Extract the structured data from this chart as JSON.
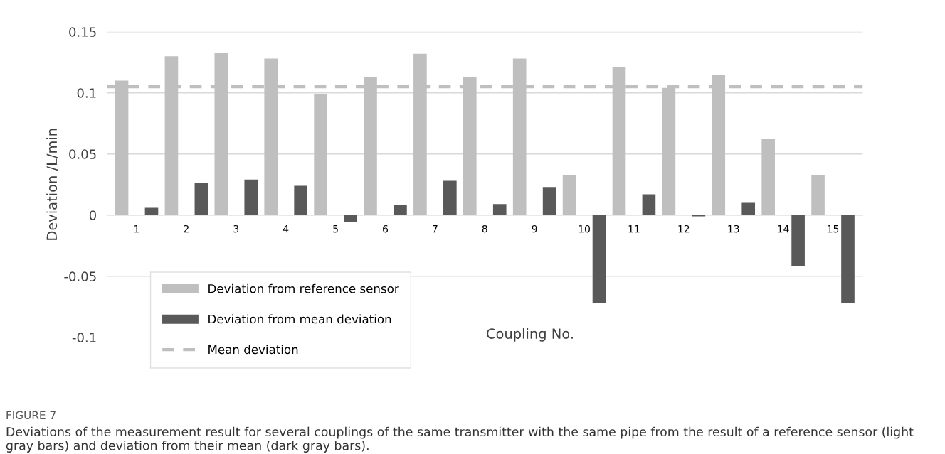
{
  "chart_data": {
    "type": "bar",
    "categories": [
      "1",
      "2",
      "3",
      "4",
      "5",
      "6",
      "7",
      "8",
      "9",
      "10",
      "11",
      "12",
      "13",
      "14",
      "15"
    ],
    "series": [
      {
        "name": "Deviation from reference sensor",
        "color": "#bfbfbf",
        "values": [
          0.11,
          0.13,
          0.133,
          0.128,
          0.099,
          0.113,
          0.132,
          0.113,
          0.128,
          0.033,
          0.121,
          0.104,
          0.115,
          0.062,
          0.033
        ]
      },
      {
        "name": "Deviation from mean deviation",
        "color": "#595959",
        "values": [
          0.006,
          0.026,
          0.029,
          0.024,
          -0.006,
          0.008,
          0.028,
          0.009,
          0.023,
          -0.072,
          0.017,
          -0.001,
          0.01,
          -0.042,
          -0.072
        ]
      }
    ],
    "ref_lines": [
      {
        "axis": "y",
        "value": 0.105,
        "label": "Mean deviation",
        "color": "#bfbfbf",
        "line_style": "dashed"
      }
    ],
    "xlabel": "Coupling No.",
    "ylabel": "Deviation /L/min",
    "ylim": [
      -0.1,
      0.15
    ],
    "yticks": [
      {
        "value": -0.1,
        "label": "-0.1"
      },
      {
        "value": -0.05,
        "label": "-0.05"
      },
      0,
      {
        "value": 0.05,
        "label": "0.05"
      },
      {
        "value": 0.1,
        "label": "0.1"
      },
      {
        "value": 0.15,
        "label": "0.15"
      }
    ],
    "grid": "y",
    "legend": "bottom left",
    "annotations": [
      "FIGURE 7",
      "Deviations of the measurement result for several couplings of the same transmitter with the same pipe from the result of a reference sensor (light gray bars) and deviation from their mean (dark gray bars)."
    ]
  }
}
